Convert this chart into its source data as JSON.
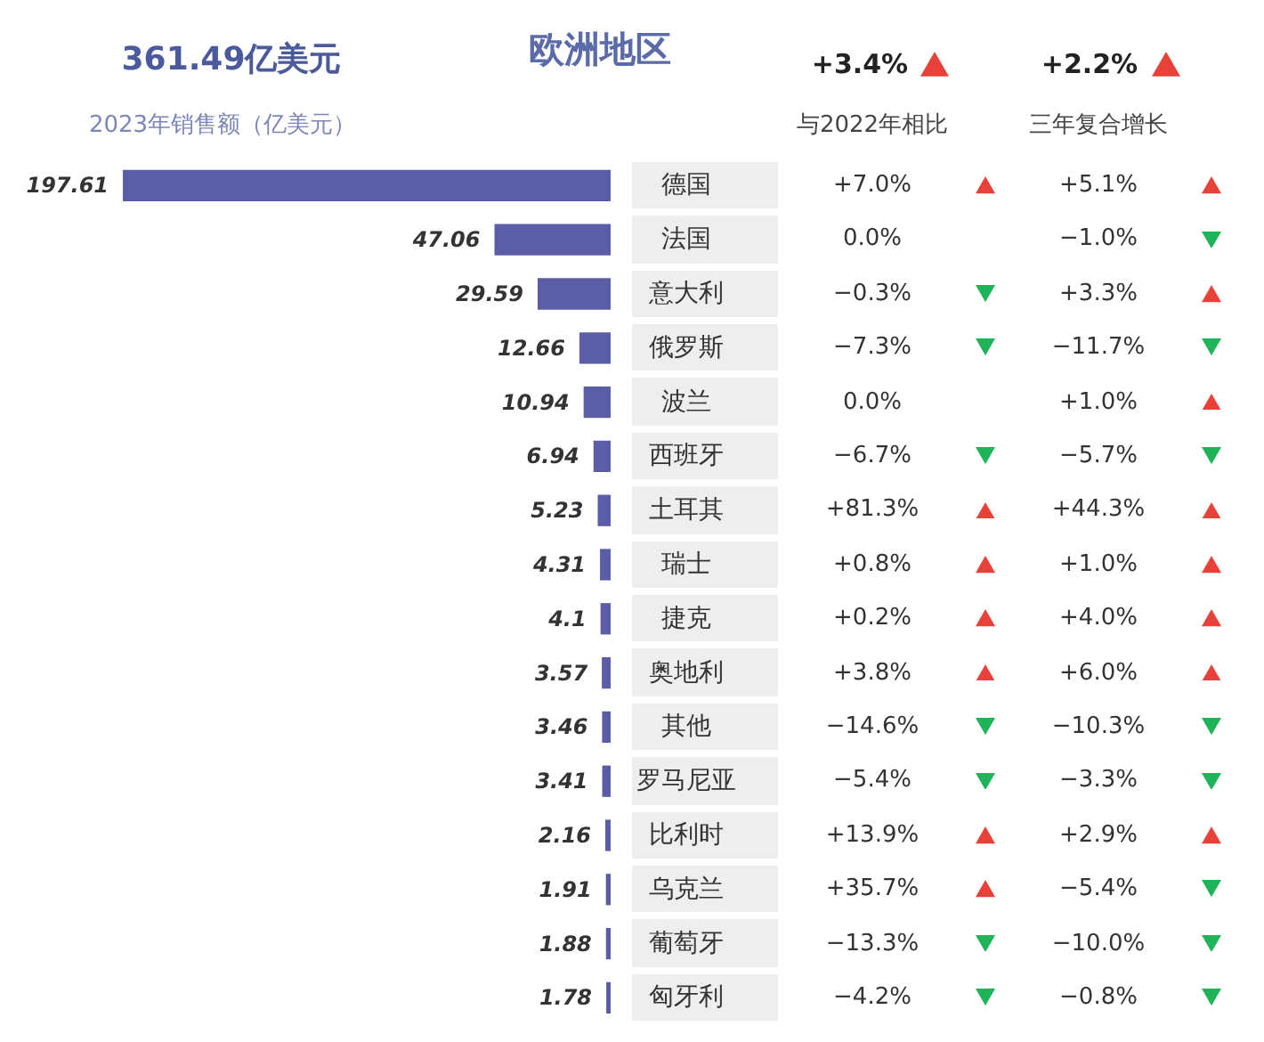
{
  "chart_data": {
    "type": "bar",
    "orientation": "horizontal",
    "title": "欧洲地区",
    "data_labels": true,
    "grid": false,
    "categories": [
      "德国",
      "法国",
      "意大利",
      "俄罗斯",
      "波兰",
      "西班牙",
      "土耳其",
      "瑞士",
      "捷克",
      "奥地利",
      "其他",
      "罗马尼亚",
      "比利时",
      "乌克兰",
      "葡萄牙",
      "匈牙利"
    ],
    "values": [
      197.61,
      47.06,
      29.59,
      12.66,
      10.94,
      6.94,
      5.23,
      4.31,
      4.1,
      3.57,
      3.46,
      3.41,
      2.16,
      1.91,
      1.88,
      1.78
    ],
    "color": "#5b5ea6",
    "annotations": [
      "361.49亿美元",
      "2023年销售额（亿美元）",
      "+3.4%",
      "+2.2%",
      "与2022年相比",
      "三年复合增长",
      "+7.0%",
      "0.0%",
      "−0.3%",
      "−7.3%",
      "0.0%",
      "−6.7%",
      "+81.3%",
      "+0.8%",
      "+0.2%",
      "+3.8%",
      "−14.6%",
      "−5.4%",
      "+13.9%",
      "+35.7%",
      "−13.3%",
      "−4.2%",
      "+5.1%",
      "−1.0%",
      "+3.3%",
      "−11.7%",
      "+1.0%",
      "−5.7%",
      "+44.3%",
      "+1.0%",
      "+4.0%",
      "+6.0%",
      "−10.3%",
      "−3.3%",
      "+2.9%",
      "−5.4%",
      "−10.0%",
      "−0.8%"
    ]
  }
}
